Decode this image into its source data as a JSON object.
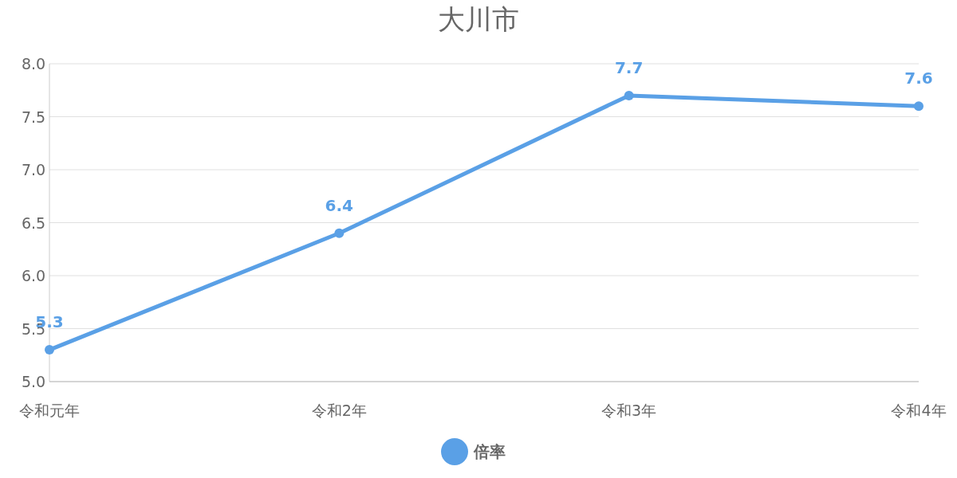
{
  "chart_data": {
    "type": "line",
    "title": "大川市",
    "categories": [
      "令和元年",
      "令和2年",
      "令和3年",
      "令和4年"
    ],
    "series": [
      {
        "name": "倍率",
        "color": "#5aa0e6",
        "values": [
          5.3,
          6.4,
          7.7,
          7.6
        ]
      }
    ],
    "ylim": [
      5,
      8
    ],
    "yticks": [
      {
        "value": 5,
        "label": "5.0"
      },
      {
        "value": 5.5,
        "label": "5.5"
      },
      {
        "value": 6,
        "label": "6.0"
      },
      {
        "value": 6.5,
        "label": "6.5"
      },
      {
        "value": 7,
        "label": "7.0"
      },
      {
        "value": 7.5,
        "label": "7.5"
      },
      {
        "value": 8,
        "label": "8.0"
      }
    ],
    "grid": "y",
    "legend": "bottom",
    "marker": "circle",
    "data_labels": true
  }
}
